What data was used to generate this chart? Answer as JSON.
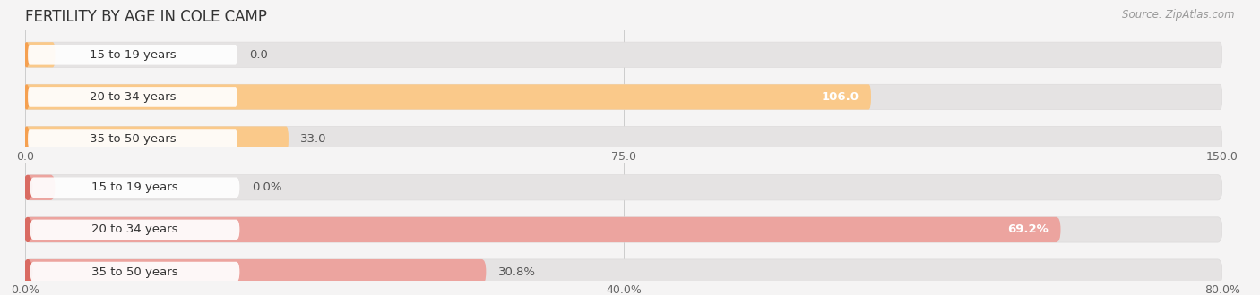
{
  "title": "FERTILITY BY AGE IN COLE CAMP",
  "source": "Source: ZipAtlas.com",
  "top_chart": {
    "categories": [
      "15 to 19 years",
      "20 to 34 years",
      "35 to 50 years"
    ],
    "values": [
      0.0,
      106.0,
      33.0
    ],
    "xlim": [
      0,
      150
    ],
    "xticks": [
      0.0,
      75.0,
      150.0
    ],
    "bar_color": "#F5A050",
    "bar_light_color": "#FAC98A",
    "bar_bg_color": "#E5E3E3",
    "bar_outline_color": "#DDDBDB"
  },
  "bottom_chart": {
    "categories": [
      "15 to 19 years",
      "20 to 34 years",
      "35 to 50 years"
    ],
    "values": [
      0.0,
      69.2,
      30.8
    ],
    "xlim": [
      0,
      80
    ],
    "xticks": [
      0.0,
      40.0,
      80.0
    ],
    "bar_color": "#D96B62",
    "bar_light_color": "#ECA49F",
    "bar_bg_color": "#E5E3E3",
    "bar_outline_color": "#DDDBDB"
  },
  "fig_bg": "#F5F4F4",
  "label_fontsize": 9.5,
  "tick_fontsize": 9,
  "title_fontsize": 12,
  "source_fontsize": 8.5
}
